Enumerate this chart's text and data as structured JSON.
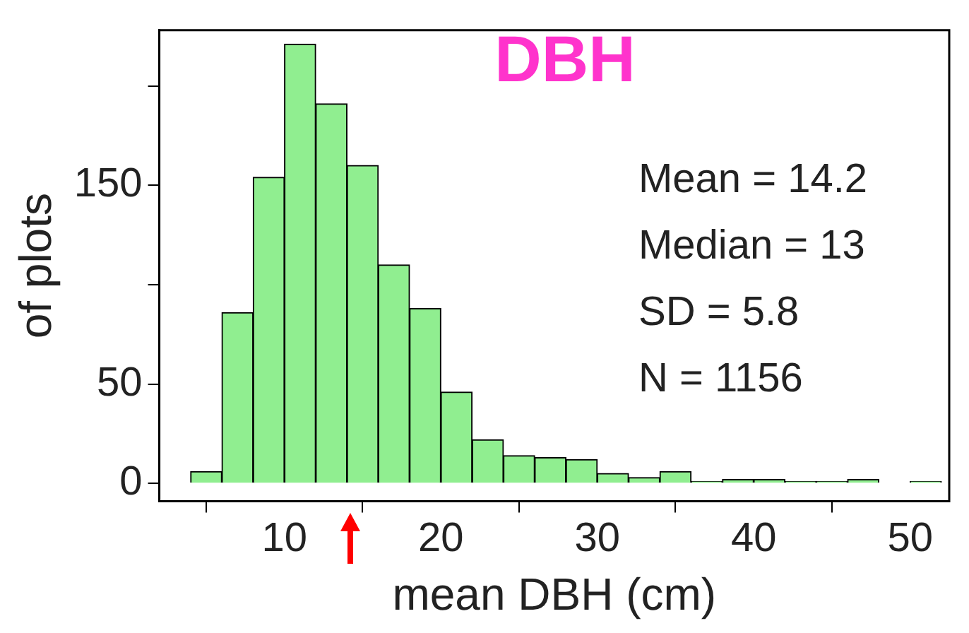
{
  "chart_data": {
    "type": "histogram",
    "title": "DBH",
    "xlabel": "mean DBH (cm)",
    "ylabel": "of plots",
    "bins": [
      4,
      6,
      8,
      10,
      12,
      14,
      16,
      18,
      20,
      22,
      24,
      26,
      28,
      30,
      32,
      34,
      36,
      38,
      40,
      42,
      44,
      46,
      48,
      50,
      52
    ],
    "values": [
      6,
      86,
      154,
      221,
      191,
      160,
      110,
      88,
      46,
      22,
      14,
      13,
      12,
      5,
      3,
      6,
      1,
      2,
      2,
      1,
      1,
      2,
      0,
      1
    ],
    "color": "#90ee90",
    "xlim": [
      2,
      52.5
    ],
    "xticks": [
      10,
      20,
      30,
      40,
      50
    ],
    "ylim": [
      -9,
      228
    ],
    "yticks": [
      0,
      50,
      {
        "value": 100,
        "label": null
      },
      150,
      {
        "value": 200,
        "label": null
      }
    ],
    "grid": false,
    "annotations": [
      "Mean = 14.2",
      "Median = 13",
      "SD = 5.8",
      "N = 1156"
    ]
  }
}
